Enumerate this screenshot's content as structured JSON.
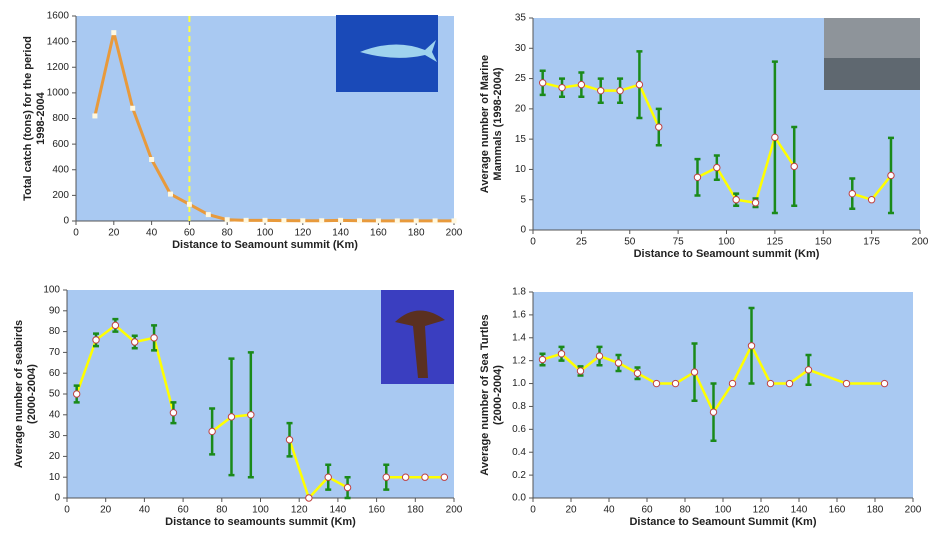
{
  "chart_data": [
    {
      "type": "line",
      "ylabel": [
        "Total catch (tons) for the period",
        "1998-2004"
      ],
      "xlabel": "Distance to Seamount summit (Km)",
      "x": [
        10,
        20,
        30,
        40,
        50,
        60,
        70,
        80,
        90,
        100,
        110,
        120,
        130,
        140,
        150,
        160,
        170,
        180,
        190,
        200
      ],
      "values": [
        820,
        1470,
        880,
        480,
        210,
        130,
        50,
        10,
        5,
        5,
        3,
        2,
        2,
        5,
        2,
        1,
        1,
        1,
        1,
        1
      ],
      "color": "#e89a3c",
      "vline": 60,
      "xlim": [
        0,
        200
      ],
      "xticks": [
        0,
        20,
        40,
        60,
        80,
        100,
        120,
        140,
        160,
        180,
        200
      ],
      "ylim": [
        0,
        1600
      ],
      "yticks": [
        0,
        200,
        400,
        600,
        800,
        1000,
        1200,
        1400,
        1600
      ]
    },
    {
      "type": "line",
      "ylabel": [
        "Average number of Marine",
        "Mammals (1998-2004)"
      ],
      "xlabel": "Distance to Seamount summit (Km)",
      "x": [
        5,
        15,
        25,
        35,
        45,
        55,
        65,
        75,
        85,
        95,
        105,
        115,
        125,
        135,
        145,
        155,
        165,
        175,
        185
      ],
      "values": [
        24.3,
        23.5,
        24,
        23,
        23,
        24,
        17,
        null,
        8.7,
        10.3,
        5,
        4.5,
        15.3,
        10.5,
        null,
        null,
        6,
        5,
        9
      ],
      "errors": [
        2,
        1.5,
        2,
        2,
        2,
        5.5,
        3,
        null,
        3,
        2,
        1,
        0.7,
        12.5,
        6.5,
        null,
        null,
        2.5,
        null,
        6.2
      ],
      "color": "#ffff00",
      "error_color": "#1a8a1a",
      "xlim": [
        0,
        200
      ],
      "xticks": [
        0,
        25,
        50,
        75,
        100,
        125,
        150,
        175,
        200
      ],
      "ylim": [
        0,
        35
      ],
      "yticks": [
        0,
        5,
        10,
        15,
        20,
        25,
        30,
        35
      ]
    },
    {
      "type": "line",
      "ylabel": [
        "Average number of seabirds",
        "(2000-2004)"
      ],
      "xlabel": "Distance to seamounts summit (Km)",
      "x": [
        5,
        15,
        25,
        35,
        45,
        55,
        65,
        75,
        85,
        95,
        105,
        115,
        125,
        135,
        145,
        155,
        165,
        175,
        185,
        195
      ],
      "values": [
        50,
        76,
        83,
        75,
        77,
        41,
        null,
        32,
        39,
        40,
        null,
        28,
        0,
        10,
        5,
        null,
        10,
        10,
        10,
        10
      ],
      "errors": [
        4,
        3,
        3,
        3,
        6,
        5,
        null,
        11,
        28,
        30,
        null,
        8,
        null,
        6,
        5,
        null,
        6,
        null,
        null,
        null
      ],
      "color": "#ffff00",
      "error_color": "#1a8a1a",
      "xlim": [
        0,
        200
      ],
      "xticks": [
        0,
        20,
        40,
        60,
        80,
        100,
        120,
        140,
        160,
        180,
        200
      ],
      "ylim": [
        0,
        100
      ],
      "yticks": [
        0,
        10,
        20,
        30,
        40,
        50,
        60,
        70,
        80,
        90,
        100
      ]
    },
    {
      "type": "line",
      "ylabel": [
        "Average number of Sea Turtles",
        "(2000-2004)"
      ],
      "xlabel": "Distance to Seamount Summit (Km)",
      "x": [
        5,
        15,
        25,
        35,
        45,
        55,
        65,
        75,
        85,
        95,
        105,
        115,
        125,
        135,
        145,
        165,
        185
      ],
      "values": [
        1.21,
        1.26,
        1.11,
        1.24,
        1.18,
        1.09,
        1,
        1,
        1.1,
        0.75,
        1,
        1.33,
        1,
        1,
        1.12,
        1,
        1
      ],
      "errors": [
        0.05,
        0.06,
        0.04,
        0.08,
        0.07,
        0.05,
        null,
        null,
        0.25,
        0.25,
        null,
        0.33,
        null,
        null,
        0.13,
        null,
        null
      ],
      "color": "#ffff00",
      "error_color": "#1a8a1a",
      "xlim": [
        0,
        200
      ],
      "xticks": [
        0,
        20,
        40,
        60,
        80,
        100,
        120,
        140,
        160,
        180,
        200
      ],
      "ylim": [
        0,
        1.8
      ],
      "yticks": [
        {
          "value": 0,
          "label": "0.0"
        },
        0.2,
        0.4,
        0.6,
        0.8,
        {
          "value": 1,
          "label": "1.0"
        },
        1.2,
        1.4,
        1.6,
        1.8
      ]
    }
  ]
}
